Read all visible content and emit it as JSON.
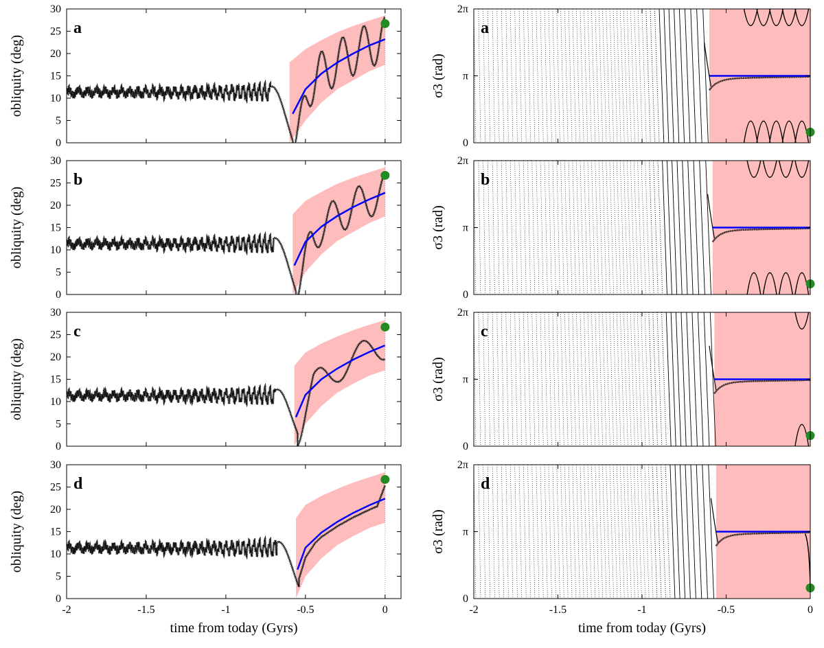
{
  "chart_data": [
    {
      "type": "line",
      "panel": "a",
      "title": "a",
      "ylabel": "obliquity (deg)",
      "xlabel": "",
      "xlim": [
        -2,
        0.1
      ],
      "ylim": [
        0,
        30
      ],
      "xticks": [
        "-2",
        "-1.5",
        "-1",
        "-0.5",
        "0"
      ],
      "yticks": [
        "0",
        "5",
        "10",
        "15",
        "20",
        "25",
        "30"
      ],
      "capture_time": -0.6,
      "min_obliquity": 0.5,
      "oscillation_amplitude": 5.5,
      "oscillation_periods": 4.5,
      "series": [
        {
          "name": "numerical obliquity",
          "color": "#000000"
        },
        {
          "name": "analytic mean",
          "color": "#0000ff",
          "x": [
            -0.58,
            -0.5,
            -0.4,
            -0.3,
            -0.2,
            -0.1,
            0.0
          ],
          "values": [
            6.5,
            12,
            15.5,
            18,
            20,
            21.8,
            23.2
          ]
        },
        {
          "name": "band lower",
          "color": "#ffbcbc",
          "x": [
            -0.6,
            -0.5,
            -0.4,
            -0.3,
            -0.2,
            -0.1,
            0.0
          ],
          "values": [
            0,
            5,
            9,
            12,
            14,
            16,
            17.5
          ]
        },
        {
          "name": "band upper",
          "color": "#ffbcbc",
          "x": [
            -0.6,
            -0.5,
            -0.4,
            -0.3,
            -0.2,
            -0.1,
            0.0
          ],
          "values": [
            18,
            21,
            23,
            24.8,
            26.2,
            27.4,
            28.5
          ]
        },
        {
          "name": "today",
          "color": "#228b22",
          "x": [
            0.0
          ],
          "values": [
            26.7
          ]
        }
      ]
    },
    {
      "type": "line",
      "panel": "b",
      "title": "b",
      "ylabel": "obliquity (deg)",
      "xlabel": "",
      "xlim": [
        -2,
        0.1
      ],
      "ylim": [
        0,
        30
      ],
      "xticks": [
        "-2",
        "-1.5",
        "-1",
        "-0.5",
        "0"
      ],
      "yticks": [
        "0",
        "5",
        "10",
        "15",
        "20",
        "25",
        "30"
      ],
      "capture_time": -0.58,
      "min_obliquity": 0.8,
      "oscillation_amplitude": 4.5,
      "oscillation_periods": 3.5,
      "series": [
        {
          "name": "numerical obliquity",
          "color": "#000000"
        },
        {
          "name": "analytic mean",
          "color": "#0000ff",
          "x": [
            -0.57,
            -0.5,
            -0.4,
            -0.3,
            -0.2,
            -0.1,
            0.0
          ],
          "values": [
            6.5,
            11.8,
            15.2,
            17.6,
            19.6,
            21.3,
            22.8
          ]
        },
        {
          "name": "band lower",
          "color": "#ffbcbc",
          "x": [
            -0.58,
            -0.5,
            -0.4,
            -0.3,
            -0.2,
            -0.1,
            0.0
          ],
          "values": [
            0,
            5,
            9,
            12,
            14,
            16,
            17.5
          ]
        },
        {
          "name": "band upper",
          "color": "#ffbcbc",
          "x": [
            -0.58,
            -0.5,
            -0.4,
            -0.3,
            -0.2,
            -0.1,
            0.0
          ],
          "values": [
            18,
            21,
            23,
            24.8,
            26.2,
            27.4,
            28.5
          ]
        },
        {
          "name": "today",
          "color": "#228b22",
          "x": [
            0.0
          ],
          "values": [
            26.7
          ]
        }
      ]
    },
    {
      "type": "line",
      "panel": "c",
      "title": "c",
      "ylabel": "obliquity (deg)",
      "xlabel": "",
      "xlim": [
        -2,
        0.1
      ],
      "ylim": [
        0,
        30
      ],
      "xticks": [
        "-2",
        "-1.5",
        "-1",
        "-0.5",
        "0"
      ],
      "yticks": [
        "0",
        "5",
        "10",
        "15",
        "20",
        "25",
        "30"
      ],
      "capture_time": -0.57,
      "min_obliquity": 3.0,
      "oscillation_amplitude": 3.5,
      "oscillation_periods": 2.0,
      "series": [
        {
          "name": "numerical obliquity",
          "color": "#000000"
        },
        {
          "name": "analytic mean",
          "color": "#0000ff",
          "x": [
            -0.56,
            -0.5,
            -0.4,
            -0.3,
            -0.2,
            -0.1,
            0.0
          ],
          "values": [
            6.5,
            11.5,
            15,
            17.4,
            19.4,
            21.1,
            22.6
          ]
        },
        {
          "name": "band lower",
          "color": "#ffbcbc",
          "x": [
            -0.57,
            -0.5,
            -0.4,
            -0.3,
            -0.2,
            -0.1,
            0.0
          ],
          "values": [
            0,
            5,
            9,
            12,
            14,
            15.8,
            17
          ]
        },
        {
          "name": "band upper",
          "color": "#ffbcbc",
          "x": [
            -0.57,
            -0.5,
            -0.4,
            -0.3,
            -0.2,
            -0.1,
            0.0
          ],
          "values": [
            18,
            21,
            23,
            24.6,
            26,
            27.2,
            28.3
          ]
        },
        {
          "name": "today",
          "color": "#228b22",
          "x": [
            0.0
          ],
          "values": [
            26.7
          ]
        }
      ]
    },
    {
      "type": "line",
      "panel": "d",
      "title": "d",
      "ylabel": "obliquity (deg)",
      "xlabel": "time from today (Gyrs)",
      "xlim": [
        -2,
        0.1
      ],
      "ylim": [
        0,
        30
      ],
      "xticks": [
        "-2",
        "-1.5",
        "-1",
        "-0.5",
        "0"
      ],
      "yticks": [
        "0",
        "5",
        "10",
        "15",
        "20",
        "25",
        "30"
      ],
      "capture_time": -0.56,
      "min_obliquity": 2.5,
      "oscillation_amplitude": 0.0,
      "oscillation_periods": 0.0,
      "series": [
        {
          "name": "numerical obliquity",
          "color": "#000000"
        },
        {
          "name": "analytic mean",
          "color": "#0000ff",
          "x": [
            -0.55,
            -0.5,
            -0.4,
            -0.3,
            -0.2,
            -0.1,
            0.0
          ],
          "values": [
            6.5,
            11.4,
            14.8,
            17.2,
            19.2,
            20.9,
            22.4
          ]
        },
        {
          "name": "band lower",
          "color": "#ffbcbc",
          "x": [
            -0.56,
            -0.5,
            -0.4,
            -0.3,
            -0.2,
            -0.1,
            0.0
          ],
          "values": [
            0,
            5,
            9,
            12,
            14,
            15.8,
            17
          ]
        },
        {
          "name": "band upper",
          "color": "#ffbcbc",
          "x": [
            -0.56,
            -0.5,
            -0.4,
            -0.3,
            -0.2,
            -0.1,
            0.0
          ],
          "values": [
            18,
            21,
            23,
            24.6,
            26,
            27.2,
            28.3
          ]
        },
        {
          "name": "today",
          "color": "#228b22",
          "x": [
            0.0
          ],
          "values": [
            26.7
          ]
        }
      ]
    },
    {
      "type": "scatter",
      "panel": "a",
      "title": "a",
      "ylabel": "σ3 (rad)",
      "xlabel": "",
      "xlim": [
        -2,
        0
      ],
      "ylim": [
        0,
        6.2832
      ],
      "xticks": [
        "-2",
        "-1.5",
        "-1",
        "-0.5",
        "0"
      ],
      "yticks": [
        "0",
        "π",
        "2π"
      ],
      "capture_time": -0.6,
      "resonance_center": 3.1416,
      "series": [
        {
          "name": "circulating phase",
          "color": "#000000"
        },
        {
          "name": "libration band",
          "color": "#ffbcbc",
          "x": [
            -0.6,
            0.0
          ]
        },
        {
          "name": "equilibrium",
          "color": "#0000ff",
          "x": [
            -0.6,
            0.0
          ],
          "values": [
            3.1416,
            3.1416
          ]
        },
        {
          "name": "today",
          "color": "#228b22",
          "x": [
            0.0
          ],
          "values": [
            0.5
          ]
        }
      ]
    },
    {
      "type": "scatter",
      "panel": "b",
      "title": "b",
      "ylabel": "σ3 (rad)",
      "xlabel": "",
      "xlim": [
        -2,
        0
      ],
      "ylim": [
        0,
        6.2832
      ],
      "xticks": [
        "-2",
        "-1.5",
        "-1",
        "-0.5",
        "0"
      ],
      "yticks": [
        "0",
        "π",
        "2π"
      ],
      "capture_time": -0.58,
      "resonance_center": 3.1416,
      "series": [
        {
          "name": "circulating phase",
          "color": "#000000"
        },
        {
          "name": "libration band",
          "color": "#ffbcbc",
          "x": [
            -0.58,
            0.0
          ]
        },
        {
          "name": "equilibrium",
          "color": "#0000ff",
          "x": [
            -0.58,
            0.0
          ],
          "values": [
            3.1416,
            3.1416
          ]
        },
        {
          "name": "today",
          "color": "#228b22",
          "x": [
            0.0
          ],
          "values": [
            0.5
          ]
        }
      ]
    },
    {
      "type": "scatter",
      "panel": "c",
      "title": "c",
      "ylabel": "σ3 (rad)",
      "xlabel": "",
      "xlim": [
        -2,
        0
      ],
      "ylim": [
        0,
        6.2832
      ],
      "xticks": [
        "-2",
        "-1.5",
        "-1",
        "-0.5",
        "0"
      ],
      "yticks": [
        "0",
        "π",
        "2π"
      ],
      "capture_time": -0.57,
      "resonance_center": 3.1416,
      "series": [
        {
          "name": "circulating phase",
          "color": "#000000"
        },
        {
          "name": "libration band",
          "color": "#ffbcbc",
          "x": [
            -0.57,
            0.0
          ]
        },
        {
          "name": "equilibrium",
          "color": "#0000ff",
          "x": [
            -0.57,
            0.0
          ],
          "values": [
            3.1416,
            3.1416
          ]
        },
        {
          "name": "today",
          "color": "#228b22",
          "x": [
            0.0
          ],
          "values": [
            0.5
          ]
        }
      ]
    },
    {
      "type": "scatter",
      "panel": "d",
      "title": "d",
      "ylabel": "σ3 (rad)",
      "xlabel": "time from today (Gyrs)",
      "xlim": [
        -2,
        0
      ],
      "ylim": [
        0,
        6.2832
      ],
      "xticks": [
        "-2",
        "-1.5",
        "-1",
        "-0.5",
        "0"
      ],
      "yticks": [
        "0",
        "π",
        "2π"
      ],
      "capture_time": -0.56,
      "resonance_center": 3.1416,
      "series": [
        {
          "name": "circulating phase",
          "color": "#000000"
        },
        {
          "name": "libration band",
          "color": "#ffbcbc",
          "x": [
            -0.56,
            0.0
          ]
        },
        {
          "name": "equilibrium",
          "color": "#0000ff",
          "x": [
            -0.56,
            0.0
          ],
          "values": [
            3.1416,
            3.1416
          ]
        },
        {
          "name": "today",
          "color": "#228b22",
          "x": [
            0.0
          ],
          "values": [
            0.5
          ]
        }
      ]
    }
  ]
}
